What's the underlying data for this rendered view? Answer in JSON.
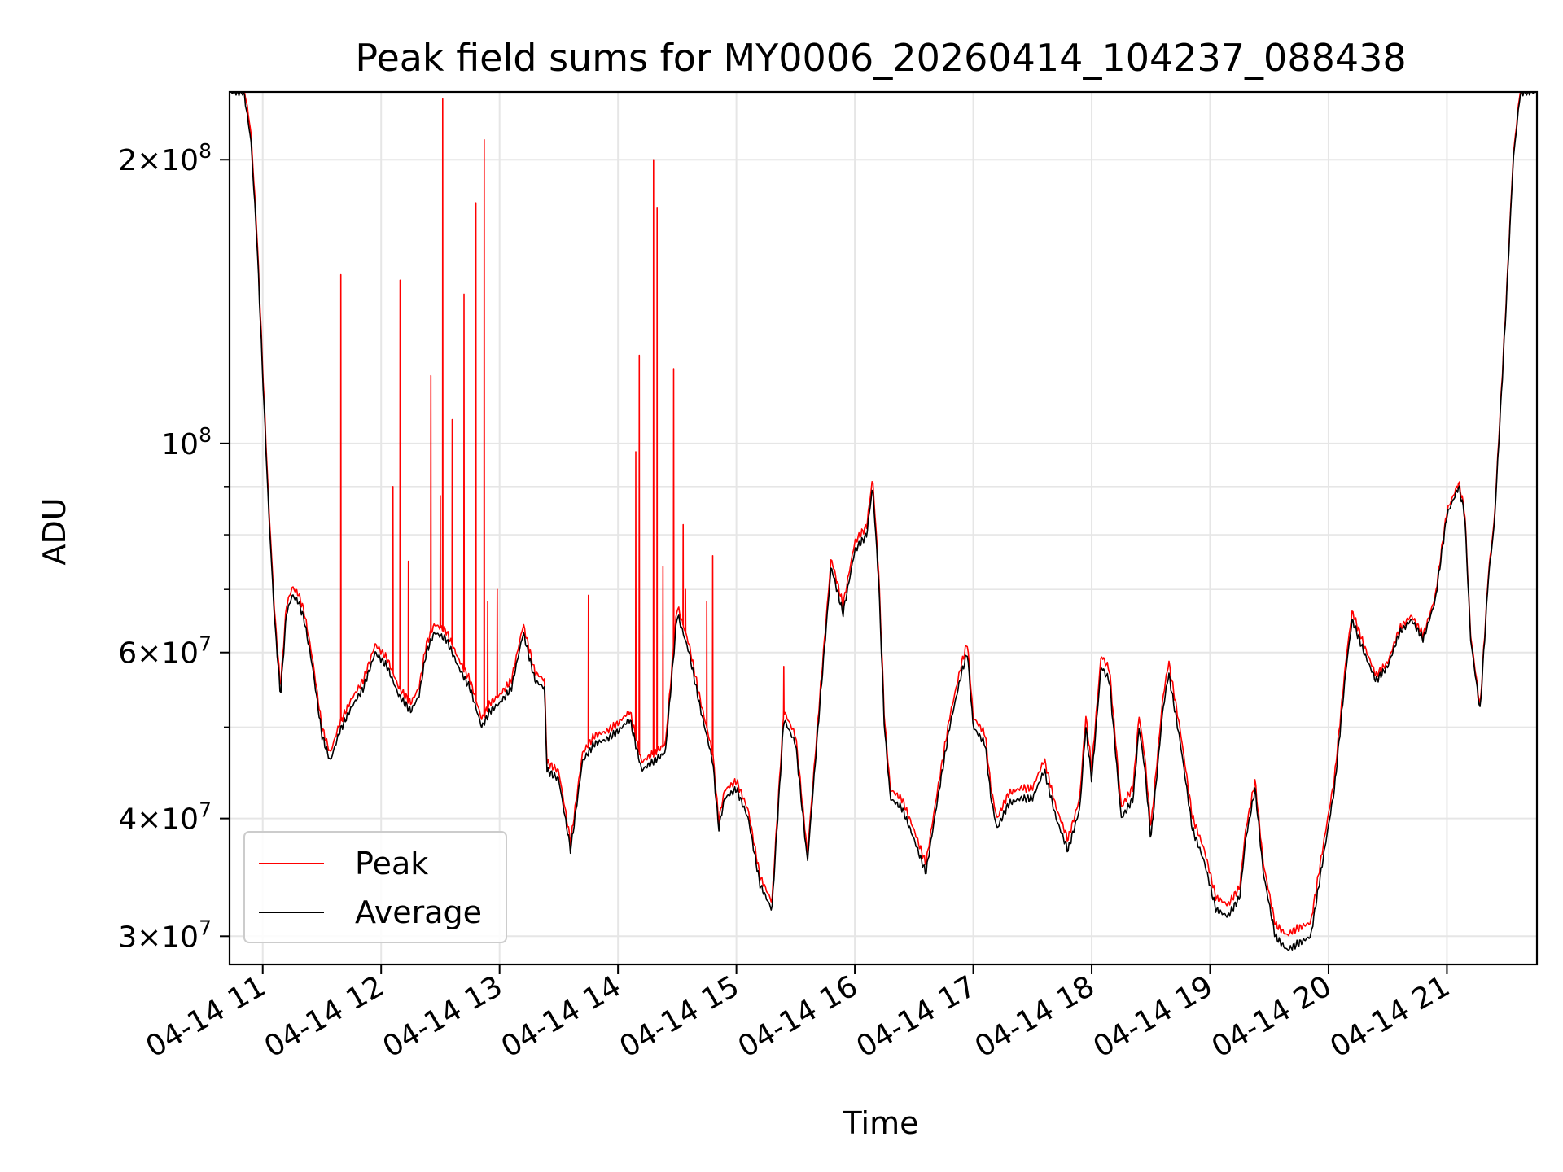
{
  "chart_data": {
    "type": "line",
    "title": "Peak field sums for MY0006_20260414_104237_088438",
    "xlabel": "Time",
    "ylabel": "ADU",
    "yscale": "log",
    "grid": true,
    "legend_position": "lower-left",
    "xlim": [
      10.72,
      21.76
    ],
    "ylim": [
      28000000,
      236000000
    ],
    "x_unit": "hours on 2026-04-14",
    "x_ticks": [
      11,
      12,
      13,
      14,
      15,
      16,
      17,
      18,
      19,
      20,
      21
    ],
    "x_tick_labels": [
      "04-14 11",
      "04-14 12",
      "04-14 13",
      "04-14 14",
      "04-14 15",
      "04-14 16",
      "04-14 17",
      "04-14 18",
      "04-14 19",
      "04-14 20",
      "04-14 21"
    ],
    "y_ticks": [
      30000000,
      40000000,
      60000000,
      100000000,
      200000000
    ],
    "y_tick_labels": [
      {
        "mantissa": "3",
        "exponent": "7"
      },
      {
        "mantissa": "4",
        "exponent": "7"
      },
      {
        "mantissa": "6",
        "exponent": "7"
      },
      {
        "mantissa": "",
        "exponent": "8"
      },
      {
        "mantissa": "2",
        "exponent": "8"
      }
    ],
    "y_tick_base": "10",
    "y_tick_times": "×",
    "y_minor_ticks": [
      50000000,
      70000000,
      80000000,
      90000000
    ],
    "series": [
      {
        "name": "Peak",
        "color": "#ff0000"
      },
      {
        "name": "Average",
        "color": "#000000"
      }
    ],
    "average_points": [
      [
        10.72,
        236000000
      ],
      [
        10.84,
        236000000
      ],
      [
        10.9,
        210000000
      ],
      [
        10.95,
        165000000
      ],
      [
        11.0,
        118000000
      ],
      [
        11.05,
        85000000
      ],
      [
        11.1,
        65000000
      ],
      [
        11.15,
        54000000
      ],
      [
        11.2,
        66000000
      ],
      [
        11.25,
        69000000
      ],
      [
        11.3,
        68000000
      ],
      [
        11.35,
        65000000
      ],
      [
        11.42,
        58000000
      ],
      [
        11.5,
        49000000
      ],
      [
        11.57,
        46000000
      ],
      [
        11.65,
        49500000
      ],
      [
        11.75,
        52500000
      ],
      [
        11.85,
        55000000
      ],
      [
        11.95,
        60000000
      ],
      [
        12.05,
        58000000
      ],
      [
        12.15,
        54000000
      ],
      [
        12.25,
        52000000
      ],
      [
        12.32,
        54000000
      ],
      [
        12.38,
        60000000
      ],
      [
        12.45,
        63000000
      ],
      [
        12.55,
        62000000
      ],
      [
        12.65,
        58000000
      ],
      [
        12.75,
        55000000
      ],
      [
        12.85,
        50000000
      ],
      [
        12.92,
        52000000
      ],
      [
        13.0,
        53000000
      ],
      [
        13.1,
        55000000
      ],
      [
        13.2,
        63000000
      ],
      [
        13.3,
        56000000
      ],
      [
        13.38,
        55000000
      ],
      [
        13.4,
        45000000
      ],
      [
        13.5,
        44000000
      ],
      [
        13.6,
        37000000
      ],
      [
        13.7,
        46000000
      ],
      [
        13.8,
        48000000
      ],
      [
        13.9,
        48500000
      ],
      [
        14.0,
        49500000
      ],
      [
        14.1,
        51000000
      ],
      [
        14.2,
        45000000
      ],
      [
        14.3,
        46000000
      ],
      [
        14.4,
        47000000
      ],
      [
        14.5,
        66000000
      ],
      [
        14.6,
        60000000
      ],
      [
        14.7,
        52000000
      ],
      [
        14.8,
        46000000
      ],
      [
        14.85,
        39000000
      ],
      [
        14.9,
        42000000
      ],
      [
        15.0,
        43000000
      ],
      [
        15.1,
        40000000
      ],
      [
        15.2,
        34000000
      ],
      [
        15.3,
        32000000
      ],
      [
        15.4,
        51000000
      ],
      [
        15.5,
        48000000
      ],
      [
        15.6,
        36000000
      ],
      [
        15.7,
        52000000
      ],
      [
        15.8,
        74000000
      ],
      [
        15.9,
        66000000
      ],
      [
        16.0,
        77000000
      ],
      [
        16.1,
        80000000
      ],
      [
        16.15,
        90000000
      ],
      [
        16.2,
        72000000
      ],
      [
        16.25,
        50000000
      ],
      [
        16.3,
        42000000
      ],
      [
        16.4,
        41000000
      ],
      [
        16.5,
        38000000
      ],
      [
        16.6,
        35000000
      ],
      [
        16.7,
        42000000
      ],
      [
        16.8,
        50000000
      ],
      [
        16.9,
        57000000
      ],
      [
        16.95,
        60000000
      ],
      [
        17.0,
        50000000
      ],
      [
        17.1,
        48000000
      ],
      [
        17.15,
        42000000
      ],
      [
        17.2,
        39000000
      ],
      [
        17.3,
        41500000
      ],
      [
        17.4,
        42000000
      ],
      [
        17.5,
        42000000
      ],
      [
        17.6,
        45000000
      ],
      [
        17.7,
        40000000
      ],
      [
        17.8,
        37000000
      ],
      [
        17.9,
        41000000
      ],
      [
        17.95,
        50000000
      ],
      [
        18.0,
        44000000
      ],
      [
        18.08,
        58000000
      ],
      [
        18.15,
        56000000
      ],
      [
        18.25,
        40000000
      ],
      [
        18.35,
        42000000
      ],
      [
        18.4,
        50000000
      ],
      [
        18.45,
        45000000
      ],
      [
        18.5,
        38000000
      ],
      [
        18.6,
        52000000
      ],
      [
        18.65,
        57000000
      ],
      [
        18.75,
        48000000
      ],
      [
        18.85,
        39000000
      ],
      [
        18.95,
        36000000
      ],
      [
        19.05,
        32000000
      ],
      [
        19.15,
        31500000
      ],
      [
        19.25,
        33000000
      ],
      [
        19.3,
        38000000
      ],
      [
        19.38,
        43000000
      ],
      [
        19.45,
        35000000
      ],
      [
        19.55,
        30000000
      ],
      [
        19.65,
        29000000
      ],
      [
        19.75,
        29500000
      ],
      [
        19.85,
        30000000
      ],
      [
        19.95,
        36000000
      ],
      [
        20.05,
        43000000
      ],
      [
        20.15,
        58000000
      ],
      [
        20.2,
        65000000
      ],
      [
        20.3,
        60000000
      ],
      [
        20.4,
        56000000
      ],
      [
        20.5,
        58000000
      ],
      [
        20.6,
        63000000
      ],
      [
        20.7,
        65000000
      ],
      [
        20.8,
        62000000
      ],
      [
        20.9,
        68000000
      ],
      [
        21.0,
        84000000
      ],
      [
        21.1,
        90000000
      ],
      [
        21.15,
        84000000
      ],
      [
        21.2,
        62000000
      ],
      [
        21.28,
        52000000
      ],
      [
        21.35,
        72000000
      ],
      [
        21.4,
        82000000
      ],
      [
        21.5,
        140000000
      ],
      [
        21.56,
        200000000
      ],
      [
        21.62,
        236000000
      ],
      [
        21.76,
        236000000
      ]
    ],
    "peak_offsets": [
      [
        11.2,
        1.02
      ],
      [
        13.8,
        1.02
      ],
      [
        15.6,
        1.02
      ],
      [
        18.8,
        1.03
      ],
      [
        19.1,
        1.03
      ],
      [
        19.4,
        1.02
      ],
      [
        19.7,
        1.04
      ],
      [
        20.5,
        1.01
      ]
    ],
    "peak_spikes": [
      [
        11.66,
        151000000
      ],
      [
        12.1,
        90000000
      ],
      [
        12.16,
        149000000
      ],
      [
        12.23,
        75000000
      ],
      [
        12.42,
        118000000
      ],
      [
        12.5,
        88000000
      ],
      [
        12.52,
        232000000
      ],
      [
        12.6,
        106000000
      ],
      [
        12.7,
        144000000
      ],
      [
        12.8,
        180000000
      ],
      [
        12.87,
        210000000
      ],
      [
        12.9,
        68000000
      ],
      [
        12.98,
        70000000
      ],
      [
        13.75,
        69000000
      ],
      [
        14.15,
        98000000
      ],
      [
        14.18,
        124000000
      ],
      [
        14.3,
        200000000
      ],
      [
        14.33,
        178000000
      ],
      [
        14.38,
        74000000
      ],
      [
        14.47,
        120000000
      ],
      [
        14.55,
        82000000
      ],
      [
        14.57,
        70000000
      ],
      [
        14.75,
        68000000
      ],
      [
        14.8,
        76000000
      ],
      [
        15.4,
        58000000
      ]
    ]
  }
}
